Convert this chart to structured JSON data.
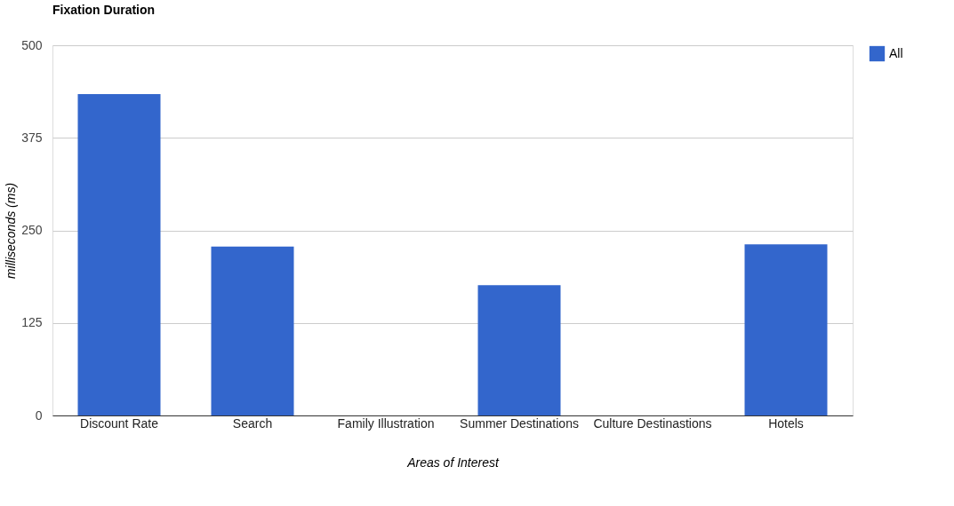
{
  "chart_data": {
    "type": "bar",
    "title": "Fixation Duration",
    "xlabel": "Areas of Interest",
    "ylabel": "milliseconds (ms)",
    "categories": [
      "Discount Rate",
      "Search",
      "Family Illustration",
      "Summer Destinations",
      "Culture Destinastions",
      "Hotels"
    ],
    "series": [
      {
        "name": "All",
        "color": "#3366cc",
        "values": [
          434,
          228,
          0,
          176,
          0,
          231
        ]
      }
    ],
    "ylim": [
      0,
      500
    ],
    "yticks": [
      0,
      125,
      250,
      375,
      500
    ],
    "grid": "y",
    "legend": "top right"
  }
}
